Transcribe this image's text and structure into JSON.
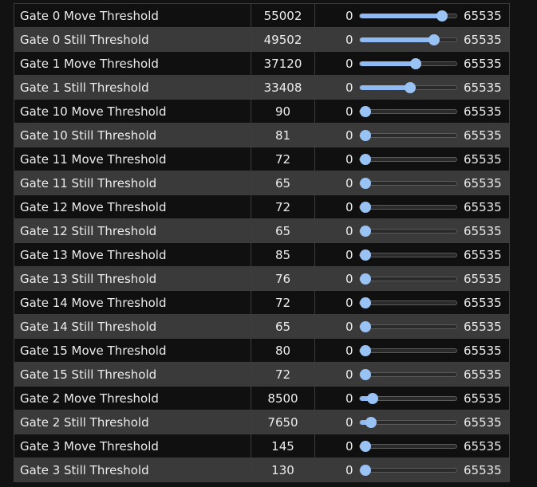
{
  "thresholds": {
    "range_min": 0,
    "range_max": 65535,
    "min_label": "0",
    "max_label": "65535",
    "rows": [
      {
        "name": "Gate 0 Move Threshold",
        "value": "55002",
        "fraction": 0.839
      },
      {
        "name": "Gate 0 Still Threshold",
        "value": "49502",
        "fraction": 0.755
      },
      {
        "name": "Gate 1 Move Threshold",
        "value": "37120",
        "fraction": 0.566
      },
      {
        "name": "Gate 1 Still Threshold",
        "value": "33408",
        "fraction": 0.51
      },
      {
        "name": "Gate 10 Move Threshold",
        "value": "90",
        "fraction": 0.001
      },
      {
        "name": "Gate 10 Still Threshold",
        "value": "81",
        "fraction": 0.001
      },
      {
        "name": "Gate 11 Move Threshold",
        "value": "72",
        "fraction": 0.001
      },
      {
        "name": "Gate 11 Still Threshold",
        "value": "65",
        "fraction": 0.001
      },
      {
        "name": "Gate 12 Move Threshold",
        "value": "72",
        "fraction": 0.001
      },
      {
        "name": "Gate 12 Still Threshold",
        "value": "65",
        "fraction": 0.001
      },
      {
        "name": "Gate 13 Move Threshold",
        "value": "85",
        "fraction": 0.001
      },
      {
        "name": "Gate 13 Still Threshold",
        "value": "76",
        "fraction": 0.001
      },
      {
        "name": "Gate 14 Move Threshold",
        "value": "72",
        "fraction": 0.001
      },
      {
        "name": "Gate 14 Still Threshold",
        "value": "65",
        "fraction": 0.001
      },
      {
        "name": "Gate 15 Move Threshold",
        "value": "80",
        "fraction": 0.001
      },
      {
        "name": "Gate 15 Still Threshold",
        "value": "72",
        "fraction": 0.001
      },
      {
        "name": "Gate 2 Move Threshold",
        "value": "8500",
        "fraction": 0.13
      },
      {
        "name": "Gate 2 Still Threshold",
        "value": "7650",
        "fraction": 0.117
      },
      {
        "name": "Gate 3 Move Threshold",
        "value": "145",
        "fraction": 0.002
      },
      {
        "name": "Gate 3 Still Threshold",
        "value": "130",
        "fraction": 0.002
      }
    ]
  },
  "colors": {
    "accent": "#99c2f5",
    "row_dark": "#101010",
    "row_light": "#3a3a3a",
    "text": "#ececec"
  }
}
